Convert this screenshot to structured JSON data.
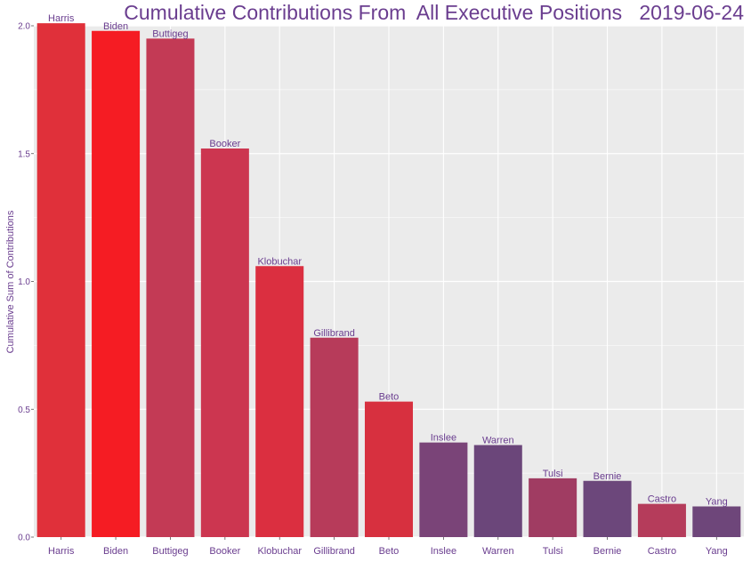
{
  "chart_data": {
    "type": "bar",
    "title": "Cumulative Contributions From  All Executive Positions   2019-06-24",
    "xlabel": "",
    "ylabel": "Cumulative Sum of Contributions",
    "ylim": [
      0,
      2.0
    ],
    "yticks": [
      "0.0",
      "0.5",
      "1.0",
      "1.5",
      "2.0"
    ],
    "ytick_values": [
      0,
      0.5,
      1.0,
      1.5,
      2.0
    ],
    "grid": true,
    "legend": "none",
    "categories": [
      "Harris",
      "Biden",
      "Buttigeg",
      "Booker",
      "Klobuchar",
      "Gillibrand",
      "Beto",
      "Inslee",
      "Warren",
      "Tulsi",
      "Bernie",
      "Castro",
      "Yang"
    ],
    "values": [
      2.01,
      1.98,
      1.95,
      1.52,
      1.06,
      0.78,
      0.53,
      0.37,
      0.36,
      0.23,
      0.22,
      0.13,
      0.12
    ],
    "bar_labels": [
      "Harris",
      "Biden",
      "Buttigeg",
      "Booker",
      "Klobuchar",
      "Gillibrand",
      "Beto",
      "Inslee",
      "Warren",
      "Tulsi",
      "Bernie",
      "Castro",
      "Yang"
    ],
    "colors": [
      "#e0303a",
      "#f51c23",
      "#c33a55",
      "#cc3650",
      "#db2f40",
      "#b73b5a",
      "#d7303f",
      "#7a4478",
      "#6b467a",
      "#a03c62",
      "#6c477b",
      "#b53c5b",
      "#6e467a"
    ],
    "panel_background": "#ebebeb",
    "grid_color": "#ffffff",
    "text_color": "#6a3d8f"
  }
}
